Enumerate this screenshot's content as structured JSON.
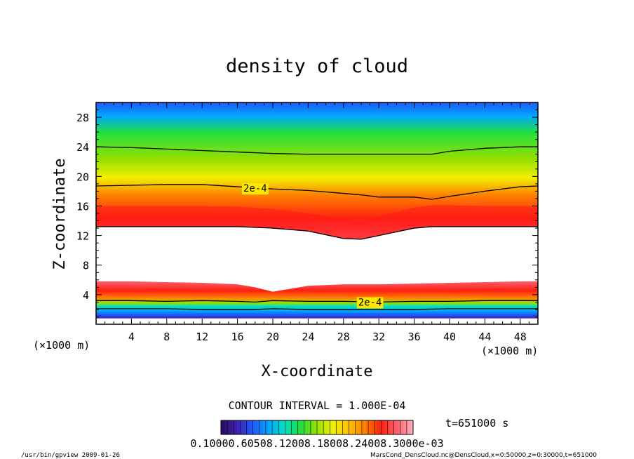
{
  "chart_data": {
    "type": "heatmap",
    "title": "density of cloud",
    "xlabel": "X-coordinate",
    "ylabel": "Z-coordinate",
    "x_unit": "(×1000 m)",
    "y_unit": "(×1000 m)",
    "xlim": [
      0,
      50
    ],
    "ylim": [
      0,
      30
    ],
    "x_ticks": [
      4,
      8,
      12,
      16,
      20,
      24,
      28,
      32,
      36,
      40,
      44,
      48
    ],
    "y_ticks": [
      4,
      8,
      12,
      16,
      20,
      24,
      28
    ],
    "contour_interval": "CONTOUR INTERVAL = 1.000E-04",
    "time_label": "t=651000 s",
    "colorbar_ticks": "0.10000.60508.12008.18008.24008.3000e-03",
    "contour_labels": [
      {
        "text": "2e-4",
        "x": 18,
        "z": 18.4
      },
      {
        "text": "2e-4",
        "x": 31,
        "z": 3.0
      }
    ],
    "upper_cloud": {
      "x": [
        0,
        4,
        8,
        12,
        16,
        20,
        24,
        28,
        30,
        32,
        36,
        38,
        40,
        44,
        48,
        50
      ],
      "bottom": [
        13.2,
        13.2,
        13.2,
        13.2,
        13.2,
        13.0,
        12.6,
        11.6,
        11.5,
        12.0,
        13.0,
        13.2,
        13.2,
        13.2,
        13.2,
        13.2
      ],
      "peak": [
        15.2,
        15.2,
        15.2,
        15.2,
        15.1,
        14.8,
        14.2,
        13.4,
        13.2,
        13.8,
        15.0,
        15.3,
        15.3,
        15.2,
        15.2,
        15.2
      ],
      "contour_2e4": [
        18.7,
        18.8,
        18.9,
        18.9,
        18.6,
        18.3,
        18.1,
        17.7,
        17.5,
        17.2,
        17.2,
        16.9,
        17.3,
        18.0,
        18.6,
        18.7
      ],
      "contour_1e4": [
        24.0,
        23.9,
        23.7,
        23.5,
        23.3,
        23.1,
        23.0,
        23.0,
        23.0,
        23.0,
        23.0,
        23.0,
        23.4,
        23.8,
        24.0,
        24.0
      ]
    },
    "lower_cloud": {
      "x": [
        0,
        4,
        8,
        12,
        16,
        18,
        20,
        24,
        28,
        32,
        36,
        40,
        44,
        48,
        50
      ],
      "top": [
        5.8,
        5.8,
        5.7,
        5.6,
        5.4,
        5.0,
        4.4,
        5.2,
        5.4,
        5.4,
        5.5,
        5.6,
        5.7,
        5.8,
        5.8
      ],
      "contour_2e4": [
        3.2,
        3.2,
        3.1,
        3.2,
        3.1,
        3.0,
        3.2,
        3.1,
        3.1,
        3.0,
        3.1,
        3.1,
        3.2,
        3.2,
        3.2
      ],
      "contour_1e4": [
        2.1,
        2.1,
        2.1,
        2.0,
        2.0,
        2.0,
        2.1,
        2.0,
        2.0,
        2.0,
        2.0,
        2.1,
        2.1,
        2.1,
        2.1
      ]
    },
    "palette": [
      "#2a0a5e",
      "#3d22b0",
      "#1f5aff",
      "#00a8ff",
      "#00e0c0",
      "#20e040",
      "#9ae000",
      "#f0f000",
      "#ffc000",
      "#ff8000",
      "#ff2010",
      "#ff6070",
      "#ffb0b8",
      "#ffffff"
    ]
  },
  "footer": {
    "left": "/usr/bin/gpview   2009-01-26",
    "right": "MarsCond_DensCloud.nc@DensCloud,x=0:50000,z=0:30000,t=651000"
  }
}
